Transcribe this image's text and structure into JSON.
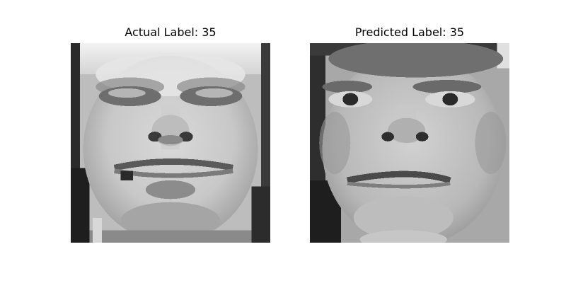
{
  "panels": [
    {
      "title": "Actual Label: 35"
    },
    {
      "title": "Predicted Label: 35"
    }
  ]
}
